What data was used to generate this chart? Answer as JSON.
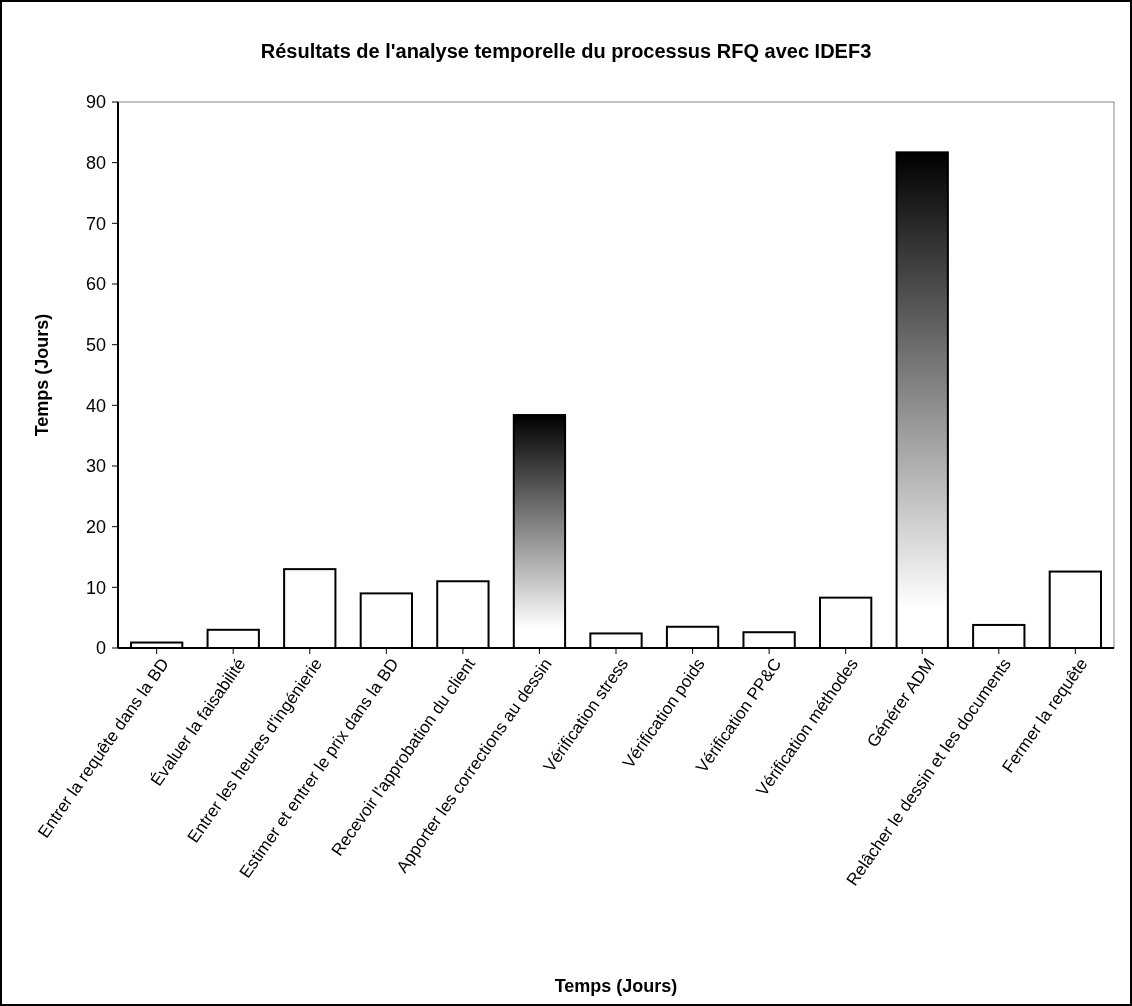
{
  "chart_data": {
    "type": "bar",
    "title": "Résultats de l'analyse temporelle du processus RFQ avec IDEF3",
    "xlabel": "Temps (Jours)",
    "ylabel": "Temps (Jours)",
    "categories": [
      "Entrer la requête dans la BD",
      "Évaluer la faisabilité",
      "Entrer les heures d'ingénierie",
      "Estimer et entrer le prix dans la BD",
      "Recevoir l'approbation du client",
      "Apporter les corrections au dessin",
      "Vérification stress",
      "Vérification poids",
      "Vérification PP&C",
      "Vérification méthodes",
      "Générer ADM",
      "Relâcher le dessin et les documents",
      "Fermer la requête"
    ],
    "values": [
      0.9,
      3,
      13,
      9,
      11,
      38.4,
      2.4,
      3.5,
      2.6,
      8.3,
      81.7,
      3.8,
      12.6
    ],
    "colors": [
      "#ffffff",
      "#ffffff",
      "#ffffff",
      "#ffffff",
      "#ffffff",
      "#000000",
      "#ffffff",
      "#ffffff",
      "#ffffff",
      "#ffffff",
      "#000000",
      "#ffffff",
      "#ffffff"
    ],
    "ylim": [
      0,
      90
    ],
    "yticks": [
      0,
      10,
      20,
      30,
      40,
      50,
      60,
      70,
      80,
      90
    ],
    "grid": false
  }
}
